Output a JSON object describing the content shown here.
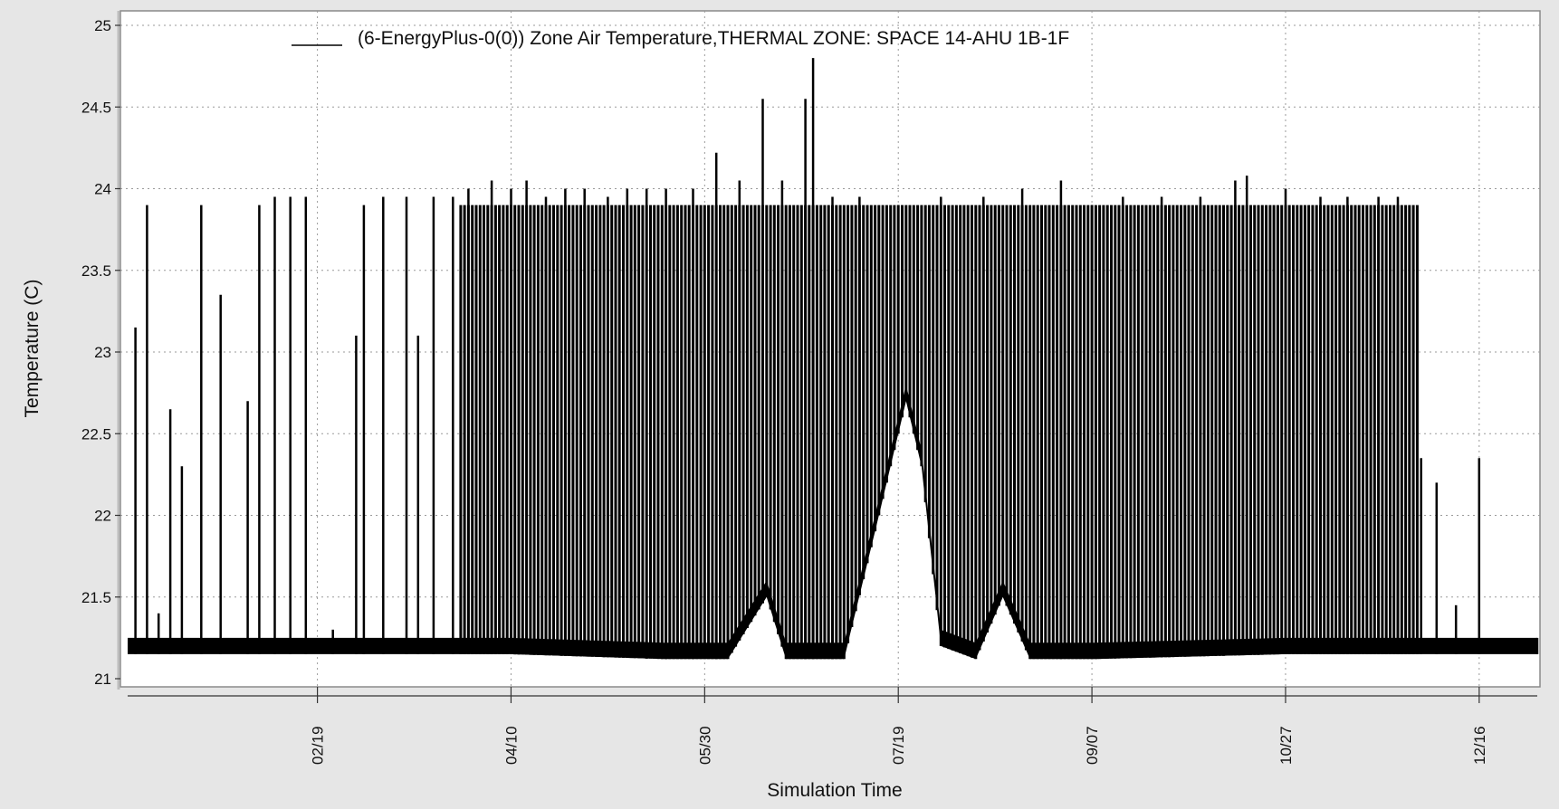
{
  "chart_data": {
    "type": "line",
    "title": "",
    "xlabel": "Simulation Time",
    "ylabel": "Temperature (C)",
    "legend": {
      "placement": "top-center",
      "entries": [
        "(6-EnergyPlus-0(0)) Zone Air Temperature,THERMAL ZONE: SPACE 14-AHU 1B-1F"
      ]
    },
    "grid": true,
    "x_range": [
      "01/01",
      "12/31"
    ],
    "ylim": [
      21,
      25
    ],
    "y_ticks": [
      21,
      21.5,
      22,
      22.5,
      23,
      23.5,
      24,
      24.5,
      25
    ],
    "x_ticks": [
      "02/19",
      "04/10",
      "05/30",
      "07/19",
      "09/07",
      "10/27",
      "12/16"
    ],
    "colors": {
      "series": "#000000",
      "plot_bg": "#ffffff",
      "frame_bg": "#e6e6e6",
      "grid": "#9a9a9a"
    },
    "series": [
      {
        "name": "(6-EnergyPlus-0(0)) Zone Air Temperature,THERMAL ZONE: SPACE 14-AHU 1B-1F",
        "x_unit": "date",
        "envelope_min": [
          {
            "x": "01/01",
            "y": 21.15
          },
          {
            "x": "02/19",
            "y": 21.15
          },
          {
            "x": "04/10",
            "y": 21.15
          },
          {
            "x": "05/20",
            "y": 21.12
          },
          {
            "x": "06/05",
            "y": 21.12
          },
          {
            "x": "06/15",
            "y": 21.5
          },
          {
            "x": "06/20",
            "y": 21.12
          },
          {
            "x": "07/05",
            "y": 21.12
          },
          {
            "x": "07/14",
            "y": 22.0
          },
          {
            "x": "07/21",
            "y": 22.7
          },
          {
            "x": "07/25",
            "y": 22.3
          },
          {
            "x": "07/30",
            "y": 21.2
          },
          {
            "x": "08/08",
            "y": 21.12
          },
          {
            "x": "08/15",
            "y": 21.5
          },
          {
            "x": "08/22",
            "y": 21.12
          },
          {
            "x": "09/07",
            "y": 21.12
          },
          {
            "x": "10/27",
            "y": 21.15
          },
          {
            "x": "12/31",
            "y": 21.15
          }
        ],
        "spikes": [
          {
            "x": "01/03",
            "y": 23.15
          },
          {
            "x": "01/06",
            "y": 23.9
          },
          {
            "x": "01/09",
            "y": 21.4
          },
          {
            "x": "01/12",
            "y": 22.65
          },
          {
            "x": "01/15",
            "y": 22.3
          },
          {
            "x": "01/20",
            "y": 23.9
          },
          {
            "x": "01/25",
            "y": 23.35
          },
          {
            "x": "02/01",
            "y": 22.7
          },
          {
            "x": "02/04",
            "y": 23.9
          },
          {
            "x": "02/08",
            "y": 23.95
          },
          {
            "x": "02/12",
            "y": 23.95
          },
          {
            "x": "02/16",
            "y": 23.95
          },
          {
            "x": "02/23",
            "y": 21.3
          },
          {
            "x": "03/01",
            "y": 23.1
          },
          {
            "x": "03/03",
            "y": 23.9
          },
          {
            "x": "03/08",
            "y": 23.95
          },
          {
            "x": "03/14",
            "y": 23.95
          },
          {
            "x": "03/17",
            "y": 23.1
          },
          {
            "x": "03/21",
            "y": 23.95
          },
          {
            "x": "03/26",
            "y": 23.95
          },
          {
            "x": "03/30",
            "y": 24.0
          },
          {
            "x": "04/05",
            "y": 24.05
          },
          {
            "x": "04/10",
            "y": 24.0
          },
          {
            "x": "04/14",
            "y": 24.05
          },
          {
            "x": "04/19",
            "y": 23.95
          },
          {
            "x": "04/24",
            "y": 24.0
          },
          {
            "x": "04/29",
            "y": 24.0
          },
          {
            "x": "05/05",
            "y": 23.95
          },
          {
            "x": "05/10",
            "y": 24.0
          },
          {
            "x": "05/15",
            "y": 24.0
          },
          {
            "x": "05/20",
            "y": 24.0
          },
          {
            "x": "05/27",
            "y": 24.0
          },
          {
            "x": "06/02",
            "y": 24.22
          },
          {
            "x": "06/08",
            "y": 24.05
          },
          {
            "x": "06/14",
            "y": 24.55
          },
          {
            "x": "06/19",
            "y": 24.05
          },
          {
            "x": "06/25",
            "y": 24.55
          },
          {
            "x": "06/27",
            "y": 24.8
          },
          {
            "x": "07/02",
            "y": 23.95
          },
          {
            "x": "07/09",
            "y": 23.95
          },
          {
            "x": "07/19",
            "y": 23.9
          },
          {
            "x": "07/30",
            "y": 23.95
          },
          {
            "x": "08/10",
            "y": 23.95
          },
          {
            "x": "08/20",
            "y": 24.0
          },
          {
            "x": "08/30",
            "y": 24.05
          },
          {
            "x": "09/07",
            "y": 23.9
          },
          {
            "x": "09/15",
            "y": 23.95
          },
          {
            "x": "09/25",
            "y": 23.95
          },
          {
            "x": "10/05",
            "y": 23.95
          },
          {
            "x": "10/14",
            "y": 24.05
          },
          {
            "x": "10/17",
            "y": 24.08
          },
          {
            "x": "10/27",
            "y": 24.0
          },
          {
            "x": "11/05",
            "y": 23.95
          },
          {
            "x": "11/12",
            "y": 23.95
          },
          {
            "x": "11/20",
            "y": 23.95
          },
          {
            "x": "11/25",
            "y": 23.95
          },
          {
            "x": "12/01",
            "y": 22.35
          },
          {
            "x": "12/05",
            "y": 22.2
          },
          {
            "x": "12/10",
            "y": 21.45
          },
          {
            "x": "12/16",
            "y": 22.35
          },
          {
            "x": "12/31",
            "y": 21.25
          }
        ]
      }
    ]
  }
}
